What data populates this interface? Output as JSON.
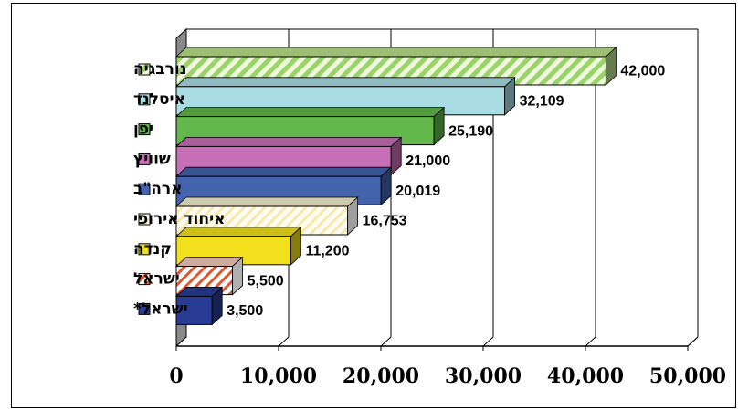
{
  "chart_data": {
    "type": "bar",
    "orientation": "horizontal",
    "xlim": [
      0,
      50000
    ],
    "xticks": [
      0,
      10000,
      20000,
      30000,
      40000,
      50000
    ],
    "xtick_labels": [
      "0",
      "10,000",
      "20,000",
      "30,000",
      "40,000",
      "50,000"
    ],
    "grid": true,
    "legend_placement": "left",
    "bars": [
      {
        "label": "נורבגיה",
        "value": 42000,
        "value_label": "42,000",
        "color": "#b8e08a",
        "pattern": "diagonal-hatch"
      },
      {
        "label": "איסלנד",
        "value": 32109,
        "value_label": "32,109",
        "color": "#a9dce3",
        "pattern": "solid"
      },
      {
        "label": "יפן",
        "value": 25190,
        "value_label": "25,190",
        "color": "#62b84a",
        "pattern": "solid"
      },
      {
        "label": "שוויץ",
        "value": 21000,
        "value_label": "21,000",
        "color": "#c66fb6",
        "pattern": "solid"
      },
      {
        "label": "ארה\"ב",
        "value": 20019,
        "value_label": "20,019",
        "color": "#4463ad",
        "pattern": "solid"
      },
      {
        "label": "איחוד אירופי",
        "value": 16753,
        "value_label": "16,753",
        "color": "#fff6d6",
        "pattern": "diagonal-hatch"
      },
      {
        "label": "קנדה",
        "value": 11200,
        "value_label": "11,200",
        "color": "#f2e01c",
        "pattern": "solid"
      },
      {
        "label": "ישראל",
        "value": 5500,
        "value_label": "5,500",
        "color": "#ffffff",
        "pattern": "red-hatch"
      },
      {
        "label": "ישראל*",
        "value": 3500,
        "value_label": "3,500",
        "color": "#283c96",
        "pattern": "solid"
      }
    ]
  }
}
